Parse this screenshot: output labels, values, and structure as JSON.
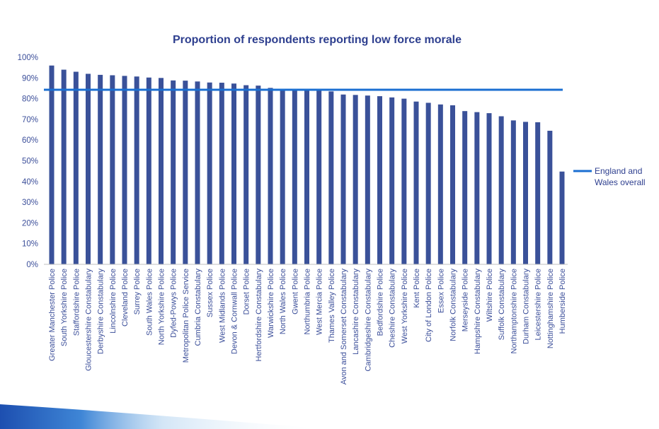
{
  "chart_data": {
    "type": "bar",
    "title": "Proportion of respondents reporting low force morale",
    "xlabel": "",
    "ylabel": "",
    "ylim": [
      0,
      100
    ],
    "yticks": [
      "0%",
      "10%",
      "20%",
      "30%",
      "40%",
      "50%",
      "60%",
      "70%",
      "80%",
      "90%",
      "100%"
    ],
    "grid": false,
    "legend_position": "right",
    "categories": [
      "Greater Manchester Police",
      "South Yorkshire Police",
      "Staffordshire Police",
      "Gloucestershire Constabulary",
      "Derbyshire Constabulary",
      "Lincolnshire Police",
      "Cleveland Police",
      "Surrey Police",
      "South Wales Police",
      "North Yorkshire Police",
      "Dyfed-Powys Police",
      "Metropolitan Police Service",
      "Cumbria Constabulary",
      "Sussex Police",
      "West Midlands Police",
      "Devon & Cornwall Police",
      "Dorset Police",
      "Hertfordshire Constabulary",
      "Warwickshire Police",
      "North Wales Police",
      "Gwent Police",
      "Northumbria Police",
      "West Mercia Police",
      "Thames Valley Police",
      "Avon and Somerset Constabulary",
      "Lancashire Constabulary",
      "Cambridgeshire Constabulary",
      "Bedfordshire Police",
      "Cheshire Constabulary",
      "West Yorkshire Police",
      "Kent Police",
      "City of London Police",
      "Essex Police",
      "Norfolk Constabulary",
      "Merseyside Police",
      "Hampshire Constabulary",
      "Wiltshire Police",
      "Suffolk Constabulary",
      "Northamptonshire Police",
      "Durham Constabulary",
      "Leicestershire Police",
      "Nottinghamshire Police",
      "Humberside Police"
    ],
    "values": [
      96,
      94,
      93,
      92,
      91.5,
      91.3,
      91,
      90.7,
      90.2,
      90,
      88.8,
      88.7,
      88.3,
      87.8,
      87.7,
      87.3,
      86.5,
      86.3,
      85.2,
      84.3,
      84.2,
      84.2,
      84,
      83.5,
      82,
      81.8,
      81.5,
      81.2,
      80.6,
      80,
      78.6,
      78,
      77.2,
      76.8,
      74,
      73.5,
      73,
      71.5,
      69.5,
      68.8,
      68.6,
      64.5,
      44.8
    ],
    "reference_line": {
      "name": "England and Wales overall",
      "label_lines": [
        "England and",
        "Wales overall"
      ],
      "value": 84.3
    },
    "colors": {
      "bar": "#3a5199",
      "line": "#1b6fd1",
      "text": "#2e3f8f"
    }
  }
}
